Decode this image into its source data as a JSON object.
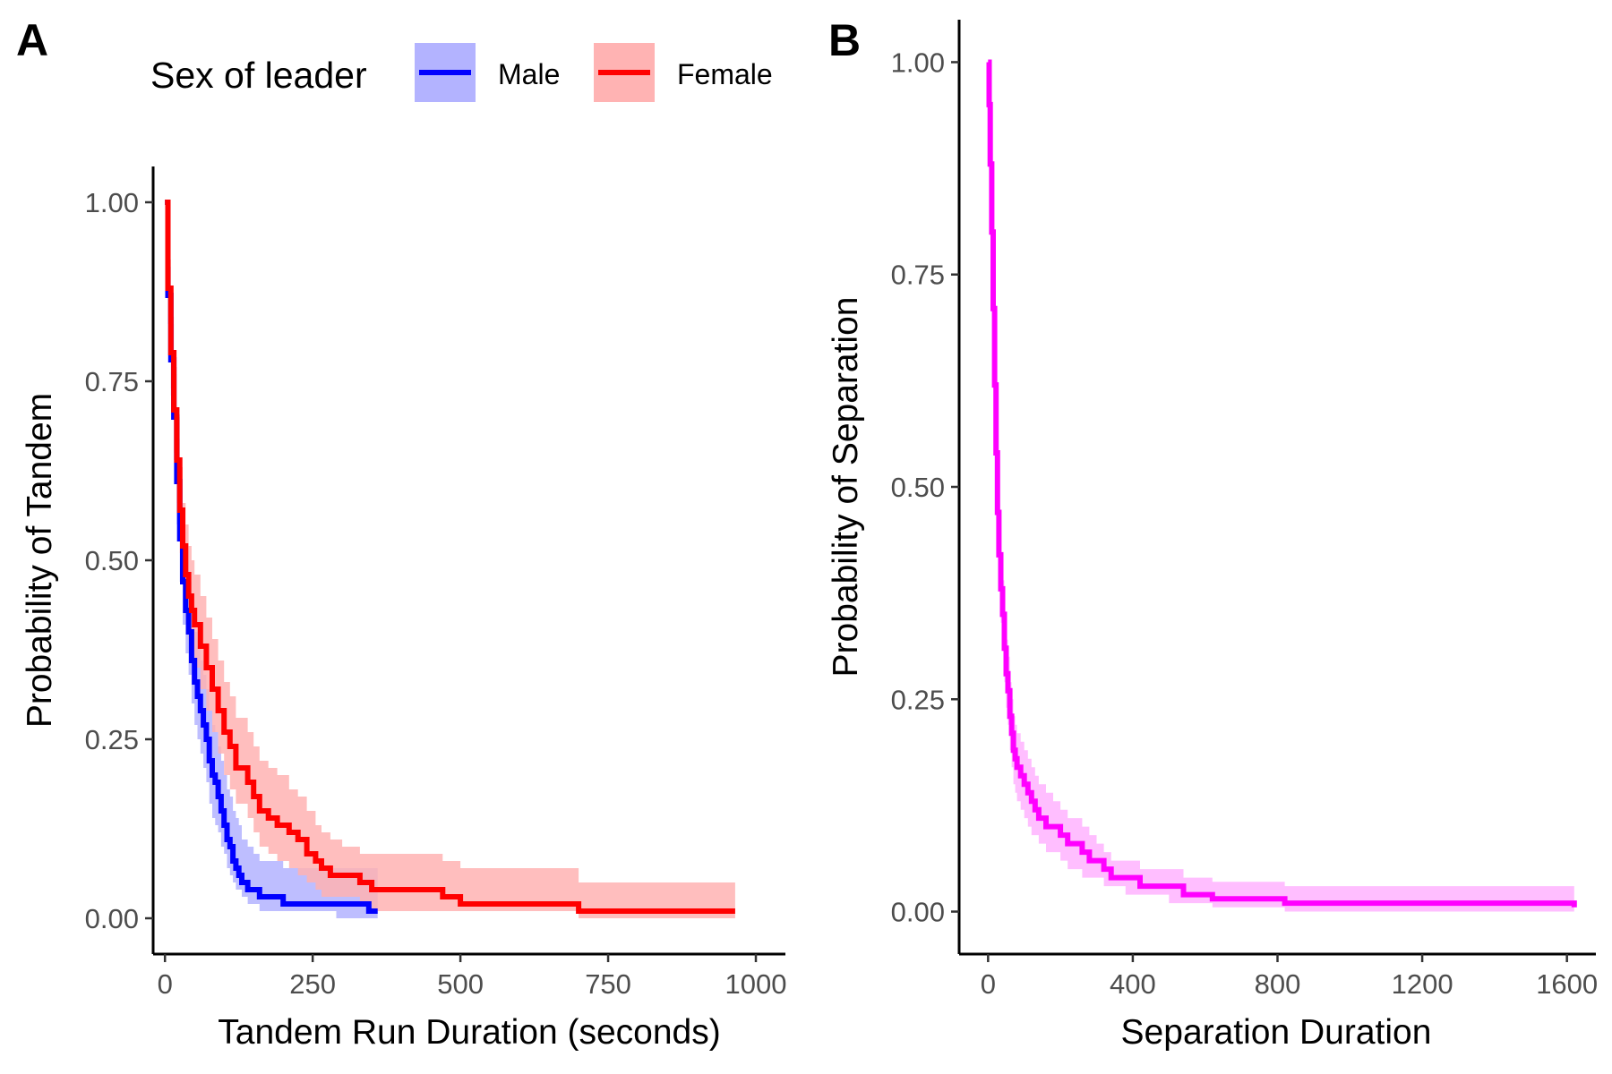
{
  "chart_data": [
    {
      "panel": "A",
      "type": "line",
      "xlabel": "Tandem Run Duration (seconds)",
      "ylabel": "Probability of Tandem",
      "xlim": [
        -20,
        1050
      ],
      "ylim": [
        -0.05,
        1.05
      ],
      "xticks": [
        0,
        250,
        500,
        750,
        1000
      ],
      "xtick_labels": [
        "0",
        "250",
        "500",
        "750",
        "1000"
      ],
      "yticks": [
        0,
        0.25,
        0.5,
        0.75,
        1.0
      ],
      "ytick_labels": [
        "0.00",
        "0.25",
        "0.50",
        "0.75",
        "1.00"
      ],
      "legend": {
        "title": "Sex of leader",
        "placement": "top"
      },
      "grid": false,
      "series": [
        {
          "name": "Male",
          "color": "#0000ff",
          "fill": "#b3b3ff",
          "step": true,
          "x": [
            0,
            5,
            10,
            15,
            20,
            25,
            30,
            35,
            40,
            45,
            50,
            55,
            60,
            65,
            70,
            75,
            80,
            85,
            90,
            95,
            100,
            105,
            110,
            115,
            120,
            125,
            130,
            140,
            150,
            160,
            180,
            200,
            210,
            260,
            290,
            330,
            345,
            355,
            360
          ],
          "y": [
            1.0,
            0.87,
            0.78,
            0.7,
            0.61,
            0.53,
            0.47,
            0.43,
            0.4,
            0.36,
            0.33,
            0.31,
            0.29,
            0.27,
            0.25,
            0.22,
            0.2,
            0.19,
            0.17,
            0.15,
            0.13,
            0.11,
            0.1,
            0.08,
            0.07,
            0.06,
            0.05,
            0.04,
            0.04,
            0.03,
            0.03,
            0.02,
            0.02,
            0.02,
            0.02,
            0.02,
            0.01,
            0.01,
            0.01
          ],
          "upper": [
            1.0,
            0.91,
            0.83,
            0.76,
            0.67,
            0.6,
            0.54,
            0.5,
            0.47,
            0.43,
            0.4,
            0.38,
            0.36,
            0.34,
            0.32,
            0.29,
            0.27,
            0.26,
            0.24,
            0.22,
            0.2,
            0.18,
            0.17,
            0.15,
            0.14,
            0.13,
            0.11,
            0.1,
            0.09,
            0.08,
            0.08,
            0.07,
            0.07,
            0.07,
            0.07,
            0.07,
            0.07,
            0.07,
            0.07
          ],
          "lower": [
            1.0,
            0.83,
            0.73,
            0.64,
            0.55,
            0.47,
            0.41,
            0.37,
            0.34,
            0.3,
            0.27,
            0.25,
            0.23,
            0.21,
            0.19,
            0.16,
            0.14,
            0.13,
            0.12,
            0.1,
            0.09,
            0.07,
            0.06,
            0.05,
            0.04,
            0.04,
            0.03,
            0.02,
            0.02,
            0.01,
            0.01,
            0.01,
            0.01,
            0.01,
            0.0,
            0.0,
            0.0,
            0.0,
            0.0
          ]
        },
        {
          "name": "Female",
          "color": "#ff0000",
          "fill": "#ffb3b3",
          "step": true,
          "x": [
            0,
            5,
            10,
            15,
            20,
            25,
            30,
            35,
            40,
            45,
            50,
            60,
            70,
            80,
            90,
            100,
            110,
            120,
            130,
            140,
            150,
            160,
            175,
            190,
            210,
            225,
            240,
            255,
            265,
            280,
            300,
            330,
            350,
            380,
            420,
            470,
            500,
            560,
            660,
            700,
            760,
            800,
            860,
            960,
            965
          ],
          "y": [
            1.0,
            0.88,
            0.79,
            0.71,
            0.64,
            0.57,
            0.52,
            0.48,
            0.45,
            0.43,
            0.41,
            0.38,
            0.35,
            0.32,
            0.29,
            0.26,
            0.24,
            0.21,
            0.21,
            0.19,
            0.17,
            0.15,
            0.14,
            0.13,
            0.12,
            0.11,
            0.09,
            0.08,
            0.07,
            0.06,
            0.06,
            0.05,
            0.04,
            0.04,
            0.04,
            0.03,
            0.02,
            0.02,
            0.02,
            0.01,
            0.01,
            0.01,
            0.01,
            0.01,
            0.01
          ],
          "upper": [
            1.0,
            0.92,
            0.84,
            0.77,
            0.7,
            0.63,
            0.58,
            0.55,
            0.52,
            0.5,
            0.48,
            0.45,
            0.42,
            0.39,
            0.36,
            0.33,
            0.31,
            0.28,
            0.28,
            0.26,
            0.24,
            0.22,
            0.21,
            0.2,
            0.18,
            0.17,
            0.15,
            0.13,
            0.12,
            0.11,
            0.1,
            0.09,
            0.09,
            0.09,
            0.09,
            0.08,
            0.07,
            0.07,
            0.07,
            0.05,
            0.05,
            0.05,
            0.05,
            0.05,
            0.05
          ],
          "lower": [
            1.0,
            0.84,
            0.74,
            0.65,
            0.58,
            0.51,
            0.46,
            0.42,
            0.39,
            0.37,
            0.35,
            0.32,
            0.29,
            0.26,
            0.23,
            0.2,
            0.18,
            0.16,
            0.16,
            0.14,
            0.12,
            0.1,
            0.09,
            0.08,
            0.07,
            0.06,
            0.05,
            0.04,
            0.03,
            0.03,
            0.03,
            0.02,
            0.01,
            0.01,
            0.01,
            0.01,
            0.01,
            0.01,
            0.01,
            0.0,
            0.0,
            0.0,
            0.0,
            0.0,
            0.0
          ]
        }
      ]
    },
    {
      "panel": "B",
      "type": "line",
      "xlabel": "Separation Duration",
      "ylabel": "Probability of Separation",
      "xlim": [
        -80,
        1680
      ],
      "ylim": [
        -0.05,
        1.05
      ],
      "xticks": [
        0,
        400,
        800,
        1200,
        1600
      ],
      "xtick_labels": [
        "0",
        "400",
        "800",
        "1200",
        "1600"
      ],
      "yticks": [
        0,
        0.25,
        0.5,
        0.75,
        1.0
      ],
      "ytick_labels": [
        "0.00",
        "0.25",
        "0.50",
        "0.75",
        "1.00"
      ],
      "grid": false,
      "series": [
        {
          "color": "#ff00ff",
          "fill": "#ffb3ff",
          "step": true,
          "x": [
            0,
            3,
            6,
            10,
            14,
            18,
            22,
            26,
            30,
            35,
            40,
            45,
            50,
            55,
            60,
            65,
            70,
            75,
            80,
            90,
            100,
            110,
            120,
            130,
            140,
            160,
            180,
            200,
            220,
            240,
            260,
            280,
            300,
            320,
            340,
            380,
            420,
            460,
            500,
            540,
            580,
            620,
            680,
            740,
            820,
            840,
            1000,
            1200,
            1400,
            1620
          ],
          "y": [
            1.0,
            0.95,
            0.88,
            0.8,
            0.71,
            0.62,
            0.54,
            0.47,
            0.42,
            0.38,
            0.35,
            0.31,
            0.28,
            0.26,
            0.23,
            0.21,
            0.19,
            0.18,
            0.17,
            0.16,
            0.15,
            0.14,
            0.13,
            0.12,
            0.11,
            0.1,
            0.1,
            0.09,
            0.08,
            0.08,
            0.07,
            0.06,
            0.06,
            0.05,
            0.04,
            0.04,
            0.03,
            0.03,
            0.03,
            0.02,
            0.02,
            0.015,
            0.015,
            0.015,
            0.01,
            0.01,
            0.01,
            0.01,
            0.01,
            0.005
          ],
          "upper": [
            1.0,
            0.97,
            0.91,
            0.84,
            0.75,
            0.66,
            0.58,
            0.51,
            0.46,
            0.42,
            0.39,
            0.35,
            0.32,
            0.3,
            0.27,
            0.25,
            0.23,
            0.22,
            0.21,
            0.2,
            0.19,
            0.18,
            0.17,
            0.16,
            0.15,
            0.14,
            0.13,
            0.12,
            0.11,
            0.11,
            0.1,
            0.09,
            0.08,
            0.07,
            0.06,
            0.06,
            0.05,
            0.05,
            0.05,
            0.04,
            0.04,
            0.035,
            0.035,
            0.035,
            0.03,
            0.03,
            0.03,
            0.03,
            0.03,
            0.03
          ],
          "lower": [
            1.0,
            0.93,
            0.85,
            0.76,
            0.67,
            0.58,
            0.5,
            0.43,
            0.38,
            0.34,
            0.31,
            0.27,
            0.24,
            0.22,
            0.19,
            0.17,
            0.15,
            0.14,
            0.13,
            0.12,
            0.11,
            0.1,
            0.09,
            0.09,
            0.08,
            0.07,
            0.07,
            0.06,
            0.05,
            0.05,
            0.04,
            0.04,
            0.04,
            0.03,
            0.03,
            0.02,
            0.02,
            0.02,
            0.01,
            0.01,
            0.01,
            0.005,
            0.005,
            0.005,
            0.0,
            0.0,
            0.0,
            0.0,
            0.0,
            0.0
          ]
        }
      ]
    }
  ],
  "panels": {
    "a_label": "A",
    "b_label": "B"
  },
  "legend": {
    "title": "Sex of leader",
    "items": [
      {
        "label": "Male",
        "color": "#0000ff",
        "fill": "#b3b3ff"
      },
      {
        "label": "Female",
        "color": "#ff0000",
        "fill": "#ffb3b3"
      }
    ]
  }
}
